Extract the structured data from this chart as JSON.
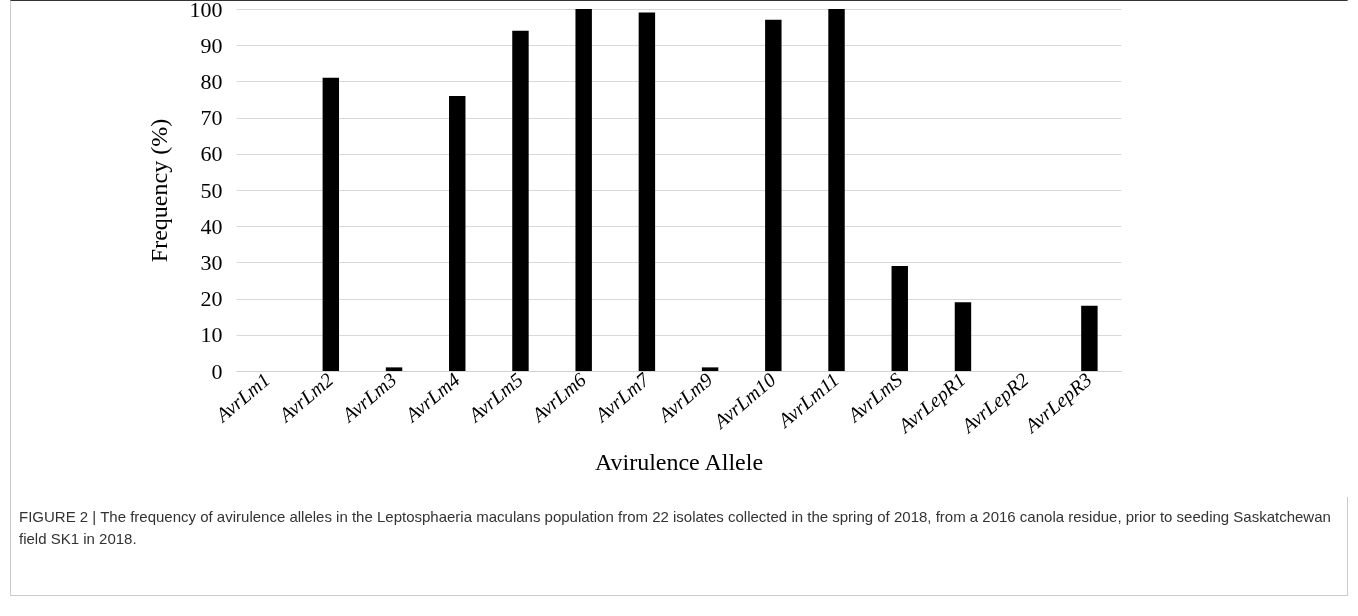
{
  "chart_data": {
    "type": "bar",
    "categories": [
      "AvrLm1",
      "AvrLm2",
      "AvrLm3",
      "AvrLm4",
      "AvrLm5",
      "AvrLm6",
      "AvrLm7",
      "AvrLm9",
      "AvrLm10",
      "AvrLm11",
      "AvrLmS",
      "AvrLepR1",
      "AvrLepR2",
      "AvrLepR3"
    ],
    "values": [
      0,
      81,
      1,
      76,
      94,
      100,
      99,
      1,
      97,
      100,
      29,
      19,
      0,
      18
    ],
    "color": "#000000",
    "xlabel": "Avirulence Allele",
    "ylabel": "Frequency (%)",
    "ylim": [
      0,
      100
    ],
    "yticks": [
      0,
      10,
      20,
      30,
      40,
      50,
      60,
      70,
      80,
      90,
      100
    ],
    "grid": "y",
    "annotations": [
      "FIGURE 2 | The frequency of avirulence alleles in the Leptosphaeria maculans population from 22 isolates collected in the spring of 2018, from a 2016 canola residue, prior to seeding Saskatchewan field SK1 in 2018."
    ]
  }
}
